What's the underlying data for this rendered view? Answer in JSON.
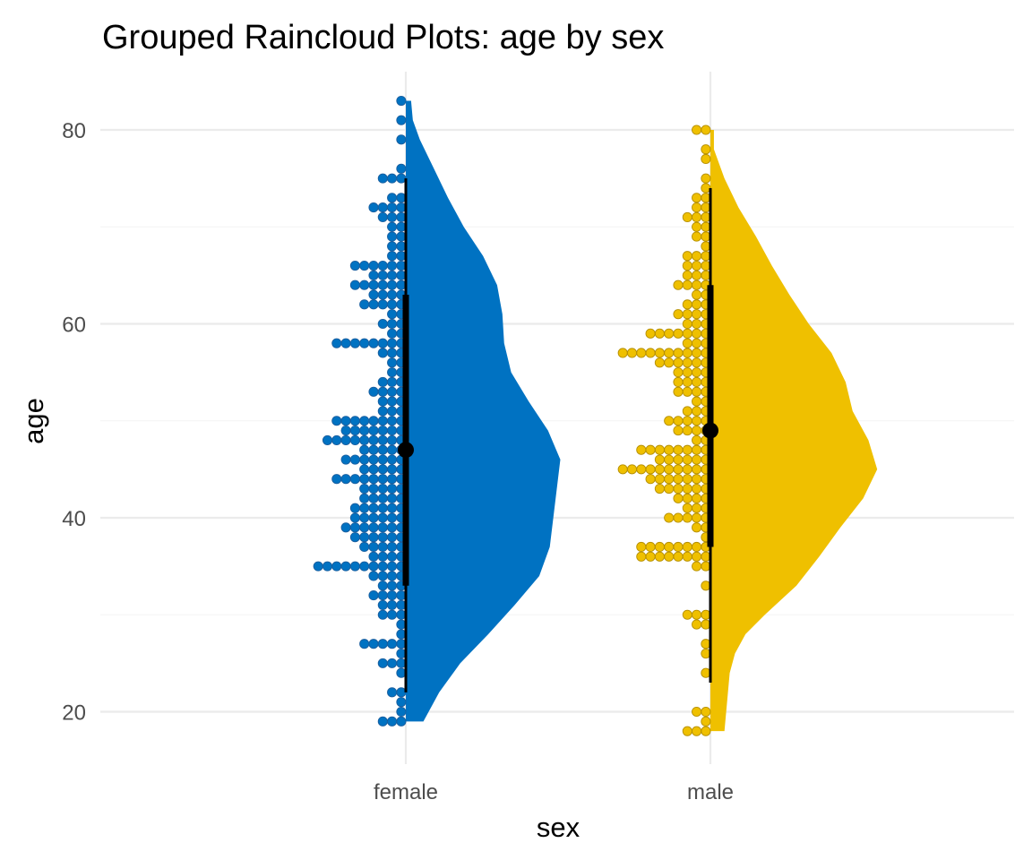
{
  "chart_data": {
    "type": "raincloud",
    "title": "Grouped Raincloud Plots: age by sex",
    "xlabel": "sex",
    "ylabel": "age",
    "ylim": [
      15,
      85
    ],
    "yticks": [
      20,
      40,
      60,
      80
    ],
    "grid": true,
    "groups": [
      {
        "name": "female",
        "color": "#0072C2",
        "dot_edge": "#1a5e9e",
        "summary": {
          "median": 47,
          "q1": 33,
          "q3": 63,
          "whisker_low": 22,
          "whisker_high": 75,
          "min": 19,
          "max": 83
        },
        "density": [
          [
            19,
            0.1
          ],
          [
            22,
            0.19
          ],
          [
            25,
            0.31
          ],
          [
            28,
            0.47
          ],
          [
            31,
            0.62
          ],
          [
            34,
            0.76
          ],
          [
            37,
            0.82
          ],
          [
            40,
            0.84
          ],
          [
            43,
            0.86
          ],
          [
            46,
            0.88
          ],
          [
            49,
            0.81
          ],
          [
            52,
            0.7
          ],
          [
            55,
            0.6
          ],
          [
            58,
            0.56
          ],
          [
            61,
            0.55
          ],
          [
            64,
            0.52
          ],
          [
            67,
            0.44
          ],
          [
            70,
            0.33
          ],
          [
            73,
            0.24
          ],
          [
            76,
            0.16
          ],
          [
            79,
            0.08
          ],
          [
            81,
            0.04
          ],
          [
            83,
            0.03
          ]
        ],
        "dot_counts": [
          [
            19,
            3
          ],
          [
            20,
            1
          ],
          [
            21,
            1
          ],
          [
            22,
            2
          ],
          [
            24,
            1
          ],
          [
            25,
            3
          ],
          [
            26,
            1
          ],
          [
            27,
            5
          ],
          [
            28,
            1
          ],
          [
            29,
            1
          ],
          [
            30,
            3
          ],
          [
            31,
            3
          ],
          [
            32,
            4
          ],
          [
            33,
            3
          ],
          [
            34,
            4
          ],
          [
            35,
            10
          ],
          [
            36,
            4
          ],
          [
            37,
            5
          ],
          [
            38,
            6
          ],
          [
            39,
            7
          ],
          [
            40,
            6
          ],
          [
            41,
            6
          ],
          [
            42,
            5
          ],
          [
            43,
            5
          ],
          [
            44,
            8
          ],
          [
            45,
            5
          ],
          [
            46,
            7
          ],
          [
            47,
            5
          ],
          [
            48,
            9
          ],
          [
            49,
            7
          ],
          [
            50,
            8
          ],
          [
            51,
            3
          ],
          [
            52,
            3
          ],
          [
            53,
            4
          ],
          [
            54,
            3
          ],
          [
            55,
            2
          ],
          [
            56,
            2
          ],
          [
            57,
            3
          ],
          [
            58,
            8
          ],
          [
            59,
            2
          ],
          [
            60,
            3
          ],
          [
            61,
            2
          ],
          [
            62,
            5
          ],
          [
            63,
            4
          ],
          [
            64,
            6
          ],
          [
            65,
            4
          ],
          [
            66,
            6
          ],
          [
            67,
            2
          ],
          [
            68,
            2
          ],
          [
            69,
            2
          ],
          [
            70,
            2
          ],
          [
            71,
            3
          ],
          [
            72,
            4
          ],
          [
            73,
            2
          ],
          [
            75,
            3
          ],
          [
            76,
            1
          ],
          [
            79,
            1
          ],
          [
            81,
            1
          ],
          [
            83,
            1
          ]
        ]
      },
      {
        "name": "male",
        "color": "#EFC000",
        "dot_edge": "#b58f00",
        "summary": {
          "median": 49,
          "q1": 37,
          "q3": 64,
          "whisker_low": 23,
          "whisker_high": 74,
          "min": 18,
          "max": 80
        },
        "density": [
          [
            18,
            0.08
          ],
          [
            20,
            0.09
          ],
          [
            22,
            0.1
          ],
          [
            24,
            0.11
          ],
          [
            26,
            0.14
          ],
          [
            28,
            0.2
          ],
          [
            30,
            0.31
          ],
          [
            33,
            0.49
          ],
          [
            36,
            0.62
          ],
          [
            39,
            0.74
          ],
          [
            42,
            0.87
          ],
          [
            45,
            0.95
          ],
          [
            48,
            0.9
          ],
          [
            51,
            0.81
          ],
          [
            54,
            0.77
          ],
          [
            57,
            0.69
          ],
          [
            60,
            0.56
          ],
          [
            63,
            0.45
          ],
          [
            66,
            0.35
          ],
          [
            69,
            0.26
          ],
          [
            72,
            0.16
          ],
          [
            75,
            0.08
          ],
          [
            78,
            0.02
          ],
          [
            80,
            0.02
          ]
        ],
        "dot_counts": [
          [
            18,
            3
          ],
          [
            19,
            1
          ],
          [
            20,
            2
          ],
          [
            24,
            1
          ],
          [
            26,
            1
          ],
          [
            27,
            1
          ],
          [
            29,
            2
          ],
          [
            30,
            3
          ],
          [
            33,
            1
          ],
          [
            35,
            2
          ],
          [
            36,
            8
          ],
          [
            37,
            8
          ],
          [
            38,
            1
          ],
          [
            39,
            2
          ],
          [
            40,
            5
          ],
          [
            41,
            3
          ],
          [
            42,
            4
          ],
          [
            43,
            6
          ],
          [
            44,
            7
          ],
          [
            45,
            10
          ],
          [
            46,
            6
          ],
          [
            47,
            8
          ],
          [
            48,
            2
          ],
          [
            49,
            4
          ],
          [
            50,
            5
          ],
          [
            51,
            3
          ],
          [
            52,
            2
          ],
          [
            53,
            4
          ],
          [
            54,
            4
          ],
          [
            55,
            4
          ],
          [
            56,
            6
          ],
          [
            57,
            10
          ],
          [
            58,
            3
          ],
          [
            59,
            7
          ],
          [
            60,
            3
          ],
          [
            61,
            4
          ],
          [
            62,
            3
          ],
          [
            63,
            2
          ],
          [
            64,
            4
          ],
          [
            65,
            3
          ],
          [
            66,
            3
          ],
          [
            67,
            3
          ],
          [
            68,
            1
          ],
          [
            69,
            2
          ],
          [
            70,
            2
          ],
          [
            71,
            3
          ],
          [
            72,
            2
          ],
          [
            73,
            2
          ],
          [
            74,
            1
          ],
          [
            75,
            1
          ],
          [
            77,
            1
          ],
          [
            78,
            1
          ],
          [
            80,
            2
          ]
        ]
      }
    ]
  }
}
